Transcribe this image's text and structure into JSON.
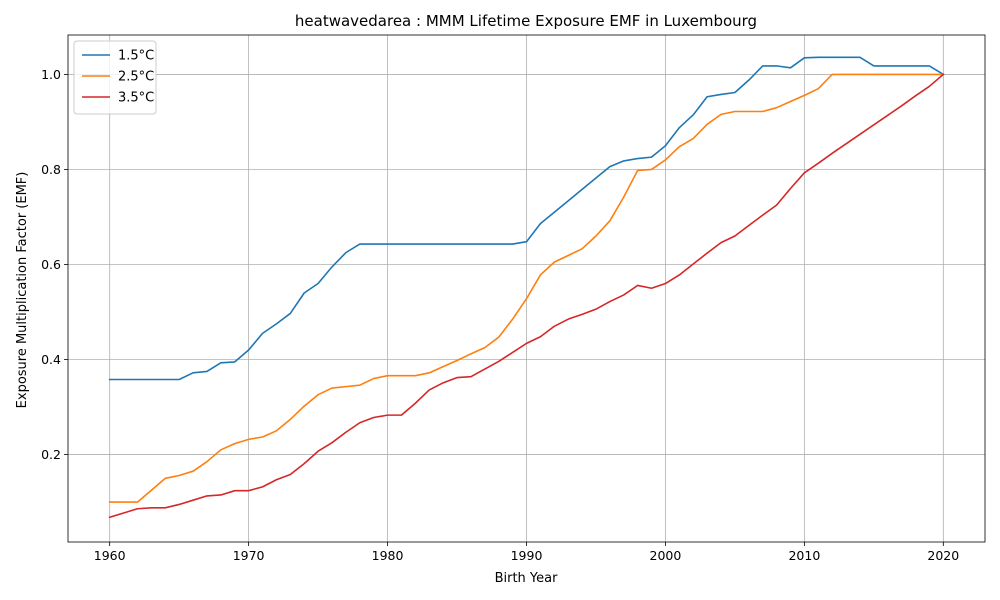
{
  "chart_data": {
    "type": "line",
    "title": "heatwavedarea : MMM Lifetime Exposure EMF in Luxembourg",
    "xlabel": "Birth Year",
    "ylabel": "Exposure Multiplication Factor (EMF)",
    "xlim": [
      1957,
      2023
    ],
    "ylim": [
      0.016,
      1.083
    ],
    "xticks": [
      1960,
      1970,
      1980,
      1990,
      2000,
      2010,
      2020
    ],
    "yticks": [
      0.2,
      0.4,
      0.6,
      0.8,
      1.0
    ],
    "xtick_labels": [
      "1960",
      "1970",
      "1980",
      "1990",
      "2000",
      "2010",
      "2020"
    ],
    "ytick_labels": [
      "0.2",
      "0.4",
      "0.6",
      "0.8",
      "1.0"
    ],
    "grid": true,
    "legend_position": "top-left",
    "x": [
      1960,
      1961,
      1962,
      1963,
      1964,
      1965,
      1966,
      1967,
      1968,
      1969,
      1970,
      1971,
      1972,
      1973,
      1974,
      1975,
      1976,
      1977,
      1978,
      1979,
      1980,
      1981,
      1982,
      1983,
      1984,
      1985,
      1986,
      1987,
      1988,
      1989,
      1990,
      1991,
      1992,
      1993,
      1994,
      1995,
      1996,
      1997,
      1998,
      1999,
      2000,
      2001,
      2002,
      2003,
      2004,
      2005,
      2006,
      2007,
      2008,
      2009,
      2010,
      2011,
      2012,
      2013,
      2014,
      2015,
      2016,
      2017,
      2018,
      2019,
      2020
    ],
    "series": [
      {
        "name": "1.5°C",
        "color": "#1f77b4",
        "values": [
          0.358,
          0.358,
          0.358,
          0.358,
          0.358,
          0.358,
          0.372,
          0.375,
          0.393,
          0.395,
          0.42,
          0.455,
          0.475,
          0.497,
          0.54,
          0.56,
          0.595,
          0.625,
          0.643,
          0.643,
          0.643,
          0.643,
          0.643,
          0.643,
          0.643,
          0.643,
          0.643,
          0.643,
          0.643,
          0.643,
          0.648,
          0.686,
          0.71,
          0.734,
          0.758,
          0.782,
          0.806,
          0.818,
          0.823,
          0.826,
          0.85,
          0.888,
          0.915,
          0.953,
          0.958,
          0.962,
          0.988,
          1.018,
          1.018,
          1.014,
          1.035,
          1.036,
          1.036,
          1.036,
          1.036,
          1.018,
          1.018,
          1.018,
          1.018,
          1.018,
          1.0
        ]
      },
      {
        "name": "2.5°C",
        "color": "#ff7f0e",
        "values": [
          0.1,
          0.1,
          0.1,
          0.125,
          0.15,
          0.156,
          0.165,
          0.185,
          0.21,
          0.223,
          0.232,
          0.237,
          0.25,
          0.274,
          0.302,
          0.326,
          0.34,
          0.343,
          0.346,
          0.36,
          0.366,
          0.366,
          0.366,
          0.372,
          0.385,
          0.398,
          0.412,
          0.425,
          0.447,
          0.485,
          0.528,
          0.578,
          0.605,
          0.619,
          0.633,
          0.66,
          0.692,
          0.742,
          0.798,
          0.8,
          0.82,
          0.848,
          0.865,
          0.895,
          0.916,
          0.922,
          0.922,
          0.922,
          0.93,
          0.943,
          0.956,
          0.97,
          1.0,
          1.0,
          1.0,
          1.0,
          1.0,
          1.0,
          1.0,
          1.0,
          1.0
        ]
      },
      {
        "name": "3.5°C",
        "color": "#d62728",
        "values": [
          0.068,
          0.077,
          0.086,
          0.088,
          0.088,
          0.095,
          0.104,
          0.113,
          0.115,
          0.124,
          0.124,
          0.132,
          0.147,
          0.158,
          0.181,
          0.207,
          0.225,
          0.247,
          0.267,
          0.278,
          0.283,
          0.283,
          0.308,
          0.336,
          0.351,
          0.362,
          0.364,
          0.38,
          0.396,
          0.415,
          0.434,
          0.448,
          0.47,
          0.485,
          0.495,
          0.506,
          0.522,
          0.536,
          0.556,
          0.55,
          0.56,
          0.578,
          0.601,
          0.624,
          0.646,
          0.66,
          0.682,
          0.704,
          0.725,
          0.76,
          0.793,
          0.813,
          0.834,
          0.854,
          0.874,
          0.894,
          0.914,
          0.934,
          0.955,
          0.975,
          1.0
        ]
      }
    ]
  }
}
